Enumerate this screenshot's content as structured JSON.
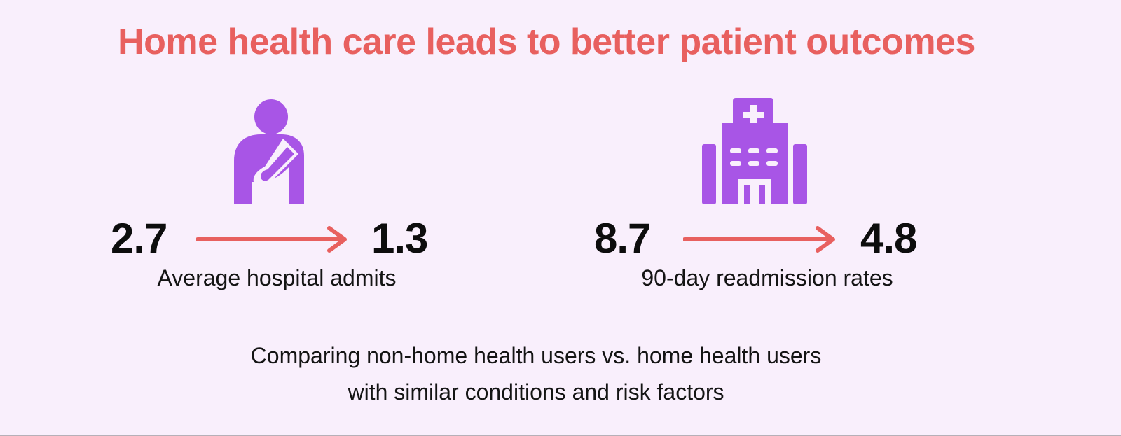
{
  "title": "Home health care leads to better patient outcomes",
  "colors": {
    "title": "#e8605f",
    "icon": "#a855e6",
    "arrow": "#e8605f",
    "background": "#f9effc"
  },
  "stats": [
    {
      "icon": "injured-patient-icon",
      "before": "2.7",
      "after": "1.3",
      "label": "Average hospital admits"
    },
    {
      "icon": "hospital-building-icon",
      "before": "8.7",
      "after": "4.8",
      "label": "90-day readmission rates"
    }
  ],
  "footnote": {
    "line1": "Comparing non-home health users vs. home health users",
    "line2": "with similar conditions and risk factors"
  }
}
